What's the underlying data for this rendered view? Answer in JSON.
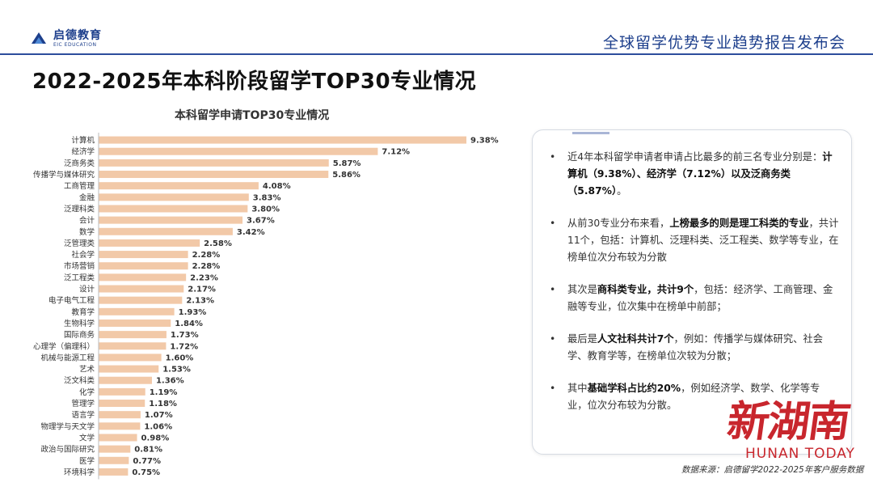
{
  "header": {
    "logo_cn": "启德教育",
    "logo_en": "EIC EDUCATION",
    "event_title": "全球留学优势专业趋势报告发布会"
  },
  "page_title": "2022-2025年本科阶段留学TOP30专业情况",
  "colors": {
    "bar": "#f2c9a8",
    "brand": "#1d3f8c",
    "stamp": "#c8262d"
  },
  "chart_data": {
    "type": "bar",
    "orientation": "horizontal",
    "title": "本科留学申请TOP30专业情况",
    "unit": "%",
    "categories": [
      "计算机",
      "经济学",
      "泛商务类",
      "传播学与媒体研究",
      "工商管理",
      "金融",
      "泛理科类",
      "会计",
      "数学",
      "泛管理类",
      "社会学",
      "市场营销",
      "泛工程类",
      "设计",
      "电子电气工程",
      "教育学",
      "生物科学",
      "国际商务",
      "心理学（偏理科）",
      "机械与能源工程",
      "艺术",
      "泛文科类",
      "化学",
      "管理学",
      "语言学",
      "物理学与天文学",
      "文学",
      "政治与国际研究",
      "医学",
      "环境科学"
    ],
    "values": [
      9.38,
      7.12,
      5.87,
      5.86,
      4.08,
      3.83,
      3.8,
      3.67,
      3.42,
      2.58,
      2.28,
      2.28,
      2.23,
      2.17,
      2.13,
      1.93,
      1.84,
      1.73,
      1.72,
      1.6,
      1.53,
      1.36,
      1.19,
      1.18,
      1.07,
      1.06,
      0.98,
      0.81,
      0.77,
      0.75
    ],
    "labels": [
      "9.38%",
      "7.12%",
      "5.87%",
      "5.86%",
      "4.08%",
      "3.83%",
      "3.80%",
      "3.67%",
      "3.42%",
      "2.58%",
      "2.28%",
      "2.28%",
      "2.23%",
      "2.17%",
      "2.13%",
      "1.93%",
      "1.84%",
      "1.73%",
      "1.72%",
      "1.60%",
      "1.53%",
      "1.36%",
      "1.19%",
      "1.18%",
      "1.07%",
      "1.06%",
      "0.98%",
      "0.81%",
      "0.77%",
      "0.75%"
    ],
    "xlim": [
      0,
      9.38
    ]
  },
  "summary": [
    {
      "segments": [
        {
          "t": "近4年本科留学申请者申请占比最多的前三名专业分别是：",
          "b": false
        },
        {
          "t": "计算机（9.38%）、经济学（7.12%）以及泛商务类（5.87%）",
          "b": true
        },
        {
          "t": "。",
          "b": false
        }
      ]
    },
    {
      "segments": [
        {
          "t": "从前30专业分布来看，",
          "b": false
        },
        {
          "t": "上榜最多的则是理工科类的专业",
          "b": true
        },
        {
          "t": "，共计11个，包括：计算机、泛理科类、泛工程类、数学等专业，在榜单位次分布较为分散",
          "b": false
        }
      ]
    },
    {
      "segments": [
        {
          "t": "其次是",
          "b": false
        },
        {
          "t": "商科类专业，共计9个",
          "b": true
        },
        {
          "t": "，包括：经济学、工商管理、金融等专业，位次集中在榜单中前部；",
          "b": false
        }
      ]
    },
    {
      "segments": [
        {
          "t": "最后是",
          "b": false
        },
        {
          "t": "人文社科共计7个",
          "b": true
        },
        {
          "t": "，例如：传播学与媒体研究、社会学、教育学等，在榜单位次较为分散；",
          "b": false
        }
      ]
    },
    {
      "segments": [
        {
          "t": "其中",
          "b": false
        },
        {
          "t": "基础学科占比约20%",
          "b": true
        },
        {
          "t": "，例如经济学、数学、化学等专业，位次分布较为分散。",
          "b": false
        }
      ]
    }
  ],
  "bullet_char": "•",
  "source_note": "数据来源：启德留学2022-2025年客户服务数据",
  "watermark": {
    "cn": "新湖南",
    "en": "HUNAN TODAY"
  }
}
